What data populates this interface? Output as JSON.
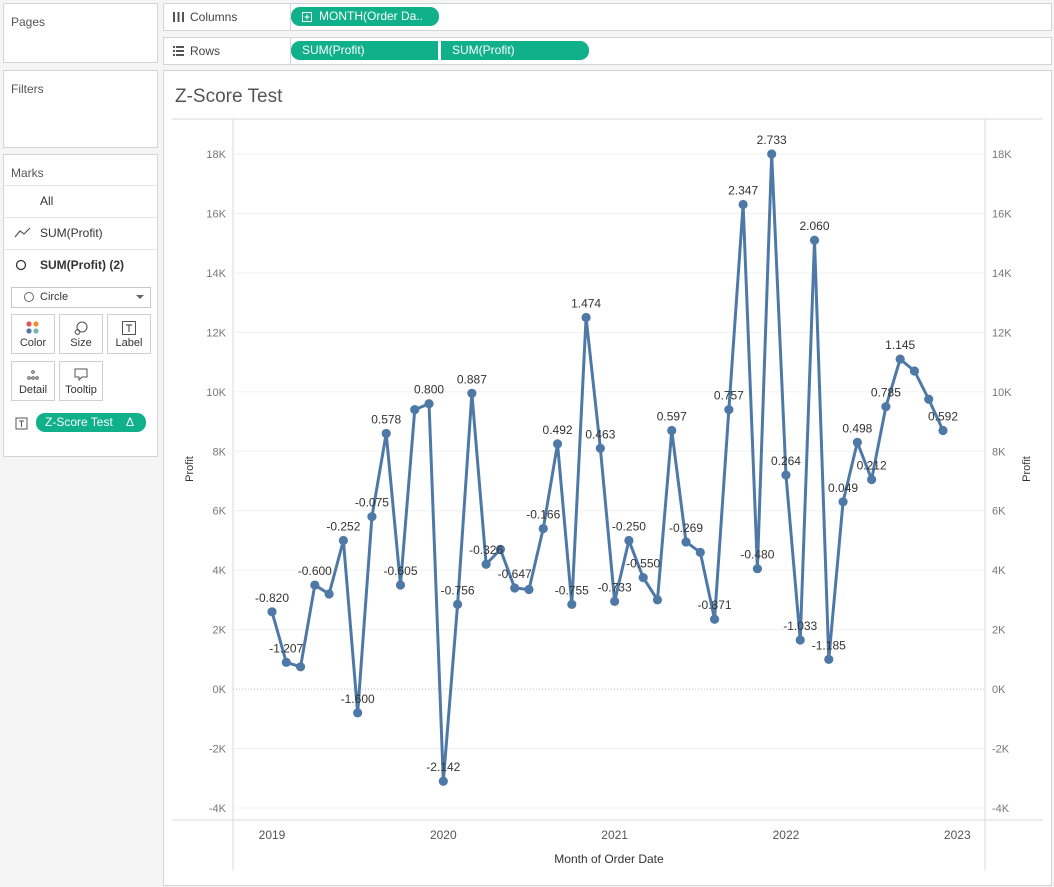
{
  "pages": {
    "title": "Pages"
  },
  "filters": {
    "title": "Filters"
  },
  "marks": {
    "title": "Marks",
    "all_label": "All",
    "layer1_label": "SUM(Profit)",
    "layer2_label": "SUM(Profit) (2)",
    "mark_type": "Circle",
    "cards": {
      "color": "Color",
      "size": "Size",
      "label": "Label",
      "detail": "Detail",
      "tooltip": "Tooltip"
    },
    "field_pill": "Z-Score Test",
    "field_pill_icon": "delta-icon"
  },
  "columns_shelf": {
    "label": "Columns",
    "pill": "MONTH(Order Da.."
  },
  "rows_shelf": {
    "label": "Rows",
    "pill1": "SUM(Profit)",
    "pill2": "SUM(Profit)"
  },
  "colors": {
    "pill": "#0fb08a",
    "line": "#4e79a7"
  },
  "chart_data": {
    "type": "line",
    "title": "Z-Score Test",
    "xlabel": "Month of Order Date",
    "ylabel_left": "Profit",
    "ylabel_right": "Profit",
    "x_ticks": [
      "2019",
      "2020",
      "2021",
      "2022",
      "2023"
    ],
    "x_range": [
      "2019-01",
      "2022-12"
    ],
    "y_ticks": [
      "18K",
      "16K",
      "14K",
      "12K",
      "10K",
      "8K",
      "6K",
      "4K",
      "2K",
      "0K",
      "-2K",
      "-4K"
    ],
    "ylim": [
      -4000,
      18000
    ],
    "series": [
      {
        "x": [
          "2019-01",
          "2019-02",
          "2019-03",
          "2019-04",
          "2019-05",
          "2019-06",
          "2019-07",
          "2019-08",
          "2019-09",
          "2019-10",
          "2019-11",
          "2019-12",
          "2020-01",
          "2020-02",
          "2020-03",
          "2020-04",
          "2020-05",
          "2020-06",
          "2020-07",
          "2020-08",
          "2020-09",
          "2020-10",
          "2020-11",
          "2020-12",
          "2021-01",
          "2021-02",
          "2021-03",
          "2021-04",
          "2021-05",
          "2021-06",
          "2021-07",
          "2021-08",
          "2021-09",
          "2021-10",
          "2021-11",
          "2021-12",
          "2022-01",
          "2022-02",
          "2022-03",
          "2022-04",
          "2022-05",
          "2022-06",
          "2022-07",
          "2022-08",
          "2022-09",
          "2022-10",
          "2022-11",
          "2022-12"
        ],
        "profit": [
          2600,
          900,
          750,
          3500,
          3200,
          5000,
          -800,
          5800,
          8600,
          3500,
          9400,
          9600,
          -3100,
          2850,
          9950,
          4200,
          4700,
          3400,
          3350,
          5400,
          8250,
          2850,
          12500,
          8100,
          2950,
          5000,
          3750,
          3000,
          8700,
          4950,
          4600,
          2350,
          9400,
          16300,
          4050,
          18000,
          7200,
          1650,
          15100,
          1000,
          6300,
          8300,
          7050,
          9500,
          11100,
          10700,
          9750,
          8700
        ],
        "zscore": [
          "-0.820",
          "-1.207",
          "",
          "-0.600",
          "",
          "-0.252",
          "-1.600",
          "-0.075",
          "0.578",
          "-0.605",
          "",
          "0.800",
          "-2.142",
          "-0.756",
          "0.887",
          "-0.326",
          "",
          "-0.647",
          "",
          "-0.166",
          "0.492",
          "-0.755",
          "1.474",
          "0.463",
          "-0.733",
          "-0.250",
          "-0.550",
          "",
          "0.597",
          "-0.269",
          "",
          "-0.871",
          "0.757",
          "2.347",
          "-0.480",
          "2.733",
          "0.264",
          "-1.033",
          "2.060",
          "-1.185",
          "0.049",
          "0.498",
          "0.212",
          "0.785",
          "1.145",
          "",
          "",
          "0.592"
        ]
      }
    ],
    "gridlines": true,
    "zero_line": "dotted",
    "dual_axis": true
  }
}
